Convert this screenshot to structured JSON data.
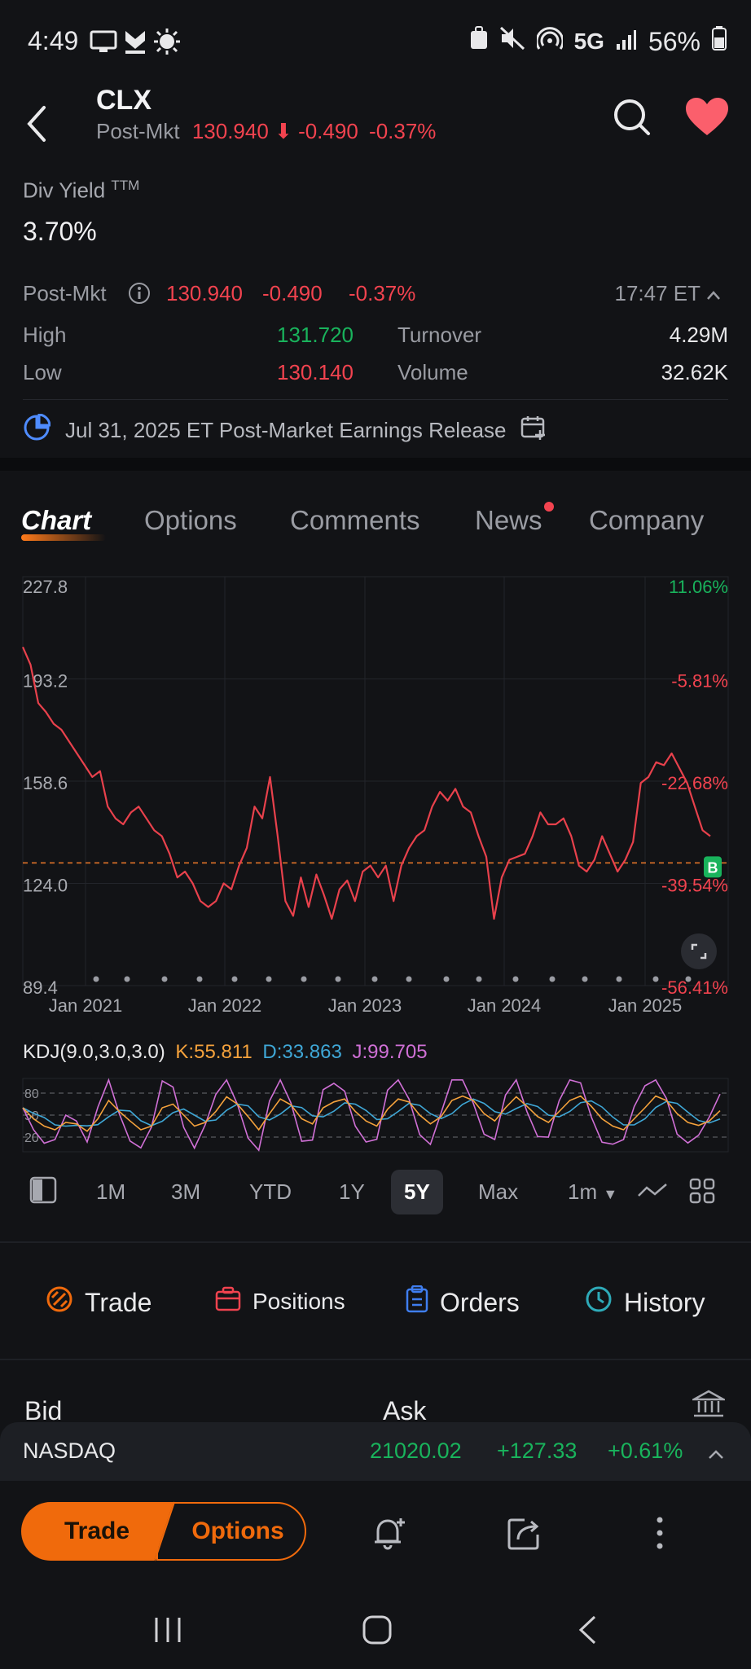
{
  "status_bar": {
    "time": "4:49",
    "network": "5G",
    "battery": "56%"
  },
  "header": {
    "ticker": "CLX",
    "sub_label": "Post-Mkt",
    "price": "130.940",
    "change": "-0.490",
    "change_pct": "-0.37%"
  },
  "div_yield": {
    "label": "Div Yield",
    "suffix": "TTM",
    "value": "3.70%"
  },
  "quote": {
    "post_label": "Post-Mkt",
    "post_price": "130.940",
    "post_change": "-0.490",
    "post_change_pct": "-0.37%",
    "time": "17:47 ET",
    "high_label": "High",
    "high_value": "131.720",
    "low_label": "Low",
    "low_value": "130.140",
    "turnover_label": "Turnover",
    "turnover_value": "4.29M",
    "volume_label": "Volume",
    "volume_value": "32.62K"
  },
  "earnings": {
    "text": "Jul 31, 2025 ET Post-Market Earnings Release"
  },
  "tabs": {
    "chart": "Chart",
    "options": "Options",
    "comments": "Comments",
    "news": "News",
    "company": "Company"
  },
  "chart_data": {
    "type": "line",
    "y_ticks": [
      "227.8",
      "193.2",
      "158.6",
      "124.0",
      "89.4"
    ],
    "y_ticks_right": [
      "11.06%",
      "-5.81%",
      "-22.68%",
      "-39.54%",
      "-56.41%"
    ],
    "x_ticks": [
      "Jan 2021",
      "Jan 2022",
      "Jan 2023",
      "Jan 2024",
      "Jan 2025"
    ],
    "ylim": [
      89.4,
      227.8
    ],
    "reference_line": 130.94,
    "marker_label": "B",
    "series": [
      {
        "color": "#e8414c",
        "values": [
          204,
          198,
          185,
          182,
          178,
          176,
          172,
          168,
          164,
          160,
          162,
          150,
          146,
          144,
          148,
          150,
          146,
          142,
          140,
          134,
          126,
          128,
          124,
          118,
          116,
          118,
          124,
          122,
          130,
          136,
          150,
          146,
          160,
          140,
          118,
          113,
          126,
          116,
          127,
          120,
          112,
          122,
          125,
          118,
          128,
          130,
          126,
          130,
          118,
          130,
          136,
          140,
          142,
          150,
          155,
          152,
          156,
          150,
          148,
          140,
          133,
          112,
          126,
          132,
          133,
          134,
          140,
          148,
          144,
          144,
          146,
          140,
          130,
          128,
          132,
          140,
          134,
          128,
          132,
          138,
          158,
          160,
          165,
          164,
          168,
          163,
          158,
          150,
          142,
          140
        ]
      }
    ],
    "kdj": {
      "label": "KDJ(9.0,3.0,3.0)",
      "k_label": "K:55.811",
      "d_label": "D:33.863",
      "j_label": "J:99.705",
      "levels": [
        "80",
        "50",
        "20"
      ],
      "k_color": "#f5a23c",
      "d_color": "#3fa7d6",
      "j_color": "#d070d6",
      "k_values": [
        60,
        45,
        35,
        30,
        40,
        38,
        28,
        45,
        70,
        55,
        42,
        30,
        35,
        60,
        65,
        50,
        35,
        40,
        55,
        75,
        65,
        48,
        30,
        52,
        72,
        64,
        45,
        38,
        60,
        68,
        72,
        55,
        42,
        35,
        58,
        72,
        68,
        50,
        38,
        48,
        70,
        76,
        70,
        52,
        42,
        60,
        75,
        62,
        48,
        40,
        55,
        70,
        76,
        62,
        45,
        35,
        30,
        45,
        60,
        76,
        70,
        52,
        40,
        36,
        42,
        56
      ]
    }
  },
  "periods": [
    "1M",
    "3M",
    "YTD",
    "1Y",
    "5Y",
    "Max",
    "1m"
  ],
  "selected_period": "5Y",
  "actions": {
    "trade": "Trade",
    "positions": "Positions",
    "orders": "Orders",
    "history": "History"
  },
  "bid_ask": {
    "bid": "Bid",
    "ask": "Ask"
  },
  "index_bar": {
    "name": "NASDAQ",
    "value": "21020.02",
    "change": "+127.33",
    "change_pct": "+0.61%"
  },
  "bottom": {
    "trade": "Trade",
    "options": "Options"
  }
}
